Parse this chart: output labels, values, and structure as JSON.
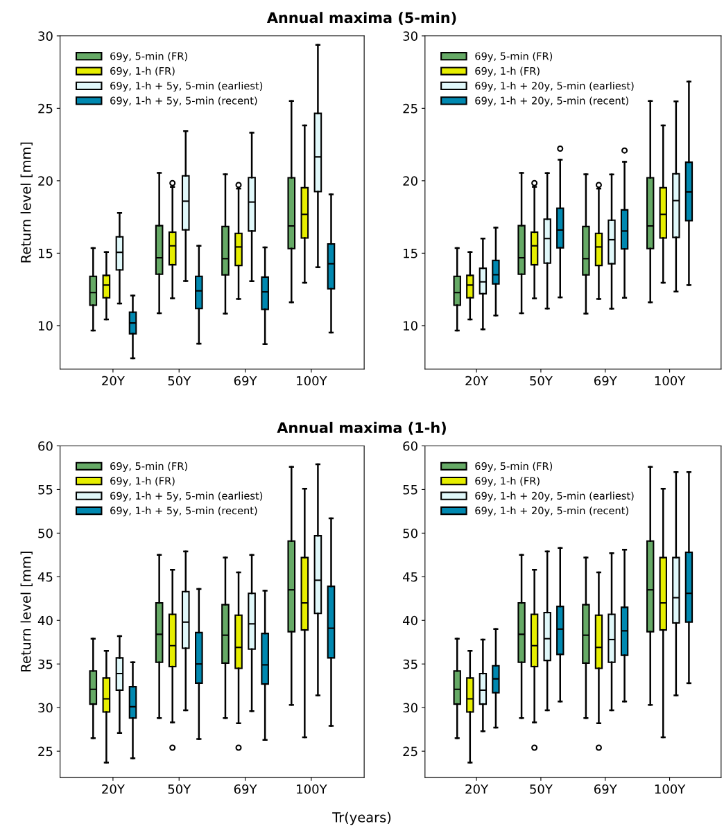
{
  "chart_data": [
    {
      "type": "box",
      "title": "Annual maxima (5-min)",
      "ylabel": "Return level [mm]",
      "categories": [
        "20Y",
        "50Y",
        "69Y",
        "100Y"
      ],
      "ylim": [
        7,
        30
      ],
      "yticks": [
        10,
        15,
        20,
        25,
        30
      ],
      "legend": "top left",
      "series": [
        {
          "name": "69y, 5-min (FR)",
          "color": "#66aa66",
          "boxes": [
            {
              "low": 9.66,
              "q1": 11.41,
              "median": 12.28,
              "q3": 13.4,
              "high": 15.35
            },
            {
              "low": 10.86,
              "q1": 13.55,
              "median": 14.68,
              "q3": 16.9,
              "high": 20.54
            },
            {
              "low": 10.83,
              "q1": 13.5,
              "median": 14.62,
              "q3": 16.84,
              "high": 20.45
            },
            {
              "low": 11.61,
              "q1": 15.32,
              "median": 16.88,
              "q3": 20.21,
              "high": 25.51
            }
          ]
        },
        {
          "name": "69y, 1-h (FR)",
          "color": "#e6ee00",
          "boxes": [
            {
              "low": 10.43,
              "q1": 11.92,
              "median": 12.8,
              "q3": 13.47,
              "high": 15.08
            },
            {
              "low": 11.88,
              "q1": 14.2,
              "median": 15.51,
              "q3": 16.45,
              "high": 19.58,
              "outliers": [
                19.84
              ]
            },
            {
              "low": 11.84,
              "q1": 14.15,
              "median": 15.43,
              "q3": 16.37,
              "high": 19.46,
              "outliers": [
                19.71
              ]
            },
            {
              "low": 12.96,
              "q1": 16.05,
              "median": 17.68,
              "q3": 19.52,
              "high": 23.82
            }
          ]
        },
        {
          "name": "69y, 1-h + 5y, 5-min (earliest)",
          "color": "#e0f8fa",
          "boxes": [
            {
              "low": 11.53,
              "q1": 13.85,
              "median": 15.06,
              "q3": 16.13,
              "high": 17.78
            },
            {
              "low": 13.08,
              "q1": 16.61,
              "median": 18.59,
              "q3": 20.34,
              "high": 23.43
            },
            {
              "low": 13.07,
              "q1": 16.53,
              "median": 18.53,
              "q3": 20.22,
              "high": 23.32
            },
            {
              "low": 14.03,
              "q1": 19.25,
              "median": 21.65,
              "q3": 24.65,
              "high": 29.38
            }
          ]
        },
        {
          "name": "69y, 1-h + 5y, 5-min (recent)",
          "color": "#0088b0",
          "boxes": [
            {
              "low": 7.75,
              "q1": 9.44,
              "median": 10.18,
              "q3": 10.93,
              "high": 12.08
            },
            {
              "low": 8.75,
              "q1": 11.18,
              "median": 12.4,
              "q3": 13.4,
              "high": 15.51
            },
            {
              "low": 8.72,
              "q1": 11.12,
              "median": 12.33,
              "q3": 13.35,
              "high": 15.4
            },
            {
              "low": 9.52,
              "q1": 12.54,
              "median": 14.27,
              "q3": 15.64,
              "high": 19.06
            }
          ]
        }
      ]
    },
    {
      "type": "box",
      "categories": [
        "20Y",
        "50Y",
        "69Y",
        "100Y"
      ],
      "ylim": [
        7,
        30
      ],
      "yticks": [
        10,
        15,
        20,
        25,
        30
      ],
      "legend": "top left",
      "series": [
        {
          "name": "69y, 5-min (FR)",
          "color": "#66aa66",
          "boxes": [
            {
              "low": 9.66,
              "q1": 11.41,
              "median": 12.28,
              "q3": 13.4,
              "high": 15.35
            },
            {
              "low": 10.86,
              "q1": 13.55,
              "median": 14.68,
              "q3": 16.9,
              "high": 20.54
            },
            {
              "low": 10.83,
              "q1": 13.5,
              "median": 14.62,
              "q3": 16.84,
              "high": 20.45
            },
            {
              "low": 11.61,
              "q1": 15.32,
              "median": 16.88,
              "q3": 20.21,
              "high": 25.51
            }
          ]
        },
        {
          "name": "69y, 1-h (FR)",
          "color": "#e6ee00",
          "boxes": [
            {
              "low": 10.43,
              "q1": 11.92,
              "median": 12.8,
              "q3": 13.47,
              "high": 15.08
            },
            {
              "low": 11.88,
              "q1": 14.2,
              "median": 15.51,
              "q3": 16.45,
              "high": 19.58,
              "outliers": [
                19.84
              ]
            },
            {
              "low": 11.84,
              "q1": 14.15,
              "median": 15.43,
              "q3": 16.37,
              "high": 19.46,
              "outliers": [
                19.71
              ]
            },
            {
              "low": 12.96,
              "q1": 16.05,
              "median": 17.68,
              "q3": 19.52,
              "high": 23.82
            }
          ]
        },
        {
          "name": "69y, 1-h + 20y, 5-min (earliest)",
          "color": "#e0f8fa",
          "boxes": [
            {
              "low": 9.74,
              "q1": 12.2,
              "median": 13.02,
              "q3": 13.96,
              "high": 16.01
            },
            {
              "low": 11.18,
              "q1": 14.31,
              "median": 16.01,
              "q3": 17.35,
              "high": 20.53
            },
            {
              "low": 11.17,
              "q1": 14.27,
              "median": 15.93,
              "q3": 17.28,
              "high": 20.43
            },
            {
              "low": 12.35,
              "q1": 16.09,
              "median": 18.63,
              "q3": 20.48,
              "high": 25.48
            }
          ]
        },
        {
          "name": "69y, 1-h + 20y, 5-min (recent)",
          "color": "#0088b0",
          "boxes": [
            {
              "low": 10.7,
              "q1": 12.88,
              "median": 13.51,
              "q3": 14.5,
              "high": 16.76
            },
            {
              "low": 11.95,
              "q1": 15.37,
              "median": 16.6,
              "q3": 18.1,
              "high": 21.45,
              "outliers": [
                22.22
              ]
            },
            {
              "low": 11.92,
              "q1": 15.29,
              "median": 16.53,
              "q3": 17.99,
              "high": 21.31,
              "outliers": [
                22.09
              ]
            },
            {
              "low": 12.8,
              "q1": 17.24,
              "median": 19.23,
              "q3": 21.28,
              "high": 26.85
            }
          ]
        }
      ]
    },
    {
      "type": "box",
      "title": "Annual maxima (1-h)",
      "ylabel": "Return level [mm]",
      "xlabel": "Tr(years)",
      "categories": [
        "20Y",
        "50Y",
        "69Y",
        "100Y"
      ],
      "ylim": [
        22,
        60
      ],
      "yticks": [
        25,
        30,
        35,
        40,
        45,
        50,
        55,
        60
      ],
      "legend": "top left",
      "series": [
        {
          "name": "69y, 5-min (FR)",
          "color": "#66aa66",
          "boxes": [
            {
              "low": 26.5,
              "q1": 30.4,
              "median": 32.1,
              "q3": 34.2,
              "high": 37.9
            },
            {
              "low": 28.8,
              "q1": 35.2,
              "median": 38.4,
              "q3": 42.0,
              "high": 47.5
            },
            {
              "low": 28.8,
              "q1": 35.1,
              "median": 38.3,
              "q3": 41.8,
              "high": 47.2
            },
            {
              "low": 30.3,
              "q1": 38.7,
              "median": 43.5,
              "q3": 49.1,
              "high": 57.6
            }
          ]
        },
        {
          "name": "69y, 1-h (FR)",
          "color": "#e6ee00",
          "boxes": [
            {
              "low": 23.7,
              "q1": 29.5,
              "median": 31.0,
              "q3": 33.4,
              "high": 36.5
            },
            {
              "low": 28.3,
              "q1": 34.7,
              "median": 37.1,
              "q3": 40.7,
              "high": 45.8,
              "outliers": [
                25.4
              ]
            },
            {
              "low": 28.2,
              "q1": 34.5,
              "median": 36.9,
              "q3": 40.6,
              "high": 45.5,
              "outliers": [
                25.4
              ]
            },
            {
              "low": 26.6,
              "q1": 38.9,
              "median": 42.0,
              "q3": 47.2,
              "high": 55.1
            }
          ]
        },
        {
          "name": "69y, 1-h + 5y, 5-min (earliest)",
          "color": "#e0f8fa",
          "boxes": [
            {
              "low": 27.1,
              "q1": 32.0,
              "median": 33.9,
              "q3": 35.7,
              "high": 38.2
            },
            {
              "low": 29.7,
              "q1": 36.8,
              "median": 39.8,
              "q3": 43.3,
              "high": 47.9
            },
            {
              "low": 29.6,
              "q1": 36.7,
              "median": 39.6,
              "q3": 43.1,
              "high": 47.5
            },
            {
              "low": 31.4,
              "q1": 40.8,
              "median": 44.6,
              "q3": 49.7,
              "high": 57.9
            }
          ]
        },
        {
          "name": "69y, 1-h + 5y, 5-min (recent)",
          "color": "#0088b0",
          "boxes": [
            {
              "low": 24.2,
              "q1": 28.8,
              "median": 30.1,
              "q3": 32.4,
              "high": 35.2
            },
            {
              "low": 26.4,
              "q1": 32.8,
              "median": 35.0,
              "q3": 38.6,
              "high": 43.6
            },
            {
              "low": 26.3,
              "q1": 32.7,
              "median": 34.9,
              "q3": 38.5,
              "high": 43.4
            },
            {
              "low": 27.9,
              "q1": 35.7,
              "median": 39.1,
              "q3": 43.9,
              "high": 51.7
            }
          ]
        }
      ]
    },
    {
      "type": "box",
      "categories": [
        "20Y",
        "50Y",
        "69Y",
        "100Y"
      ],
      "ylim": [
        22,
        60
      ],
      "yticks": [
        25,
        30,
        35,
        40,
        45,
        50,
        55,
        60
      ],
      "legend": "top left",
      "series": [
        {
          "name": "69y, 5-min (FR)",
          "color": "#66aa66",
          "boxes": [
            {
              "low": 26.5,
              "q1": 30.4,
              "median": 32.1,
              "q3": 34.2,
              "high": 37.9
            },
            {
              "low": 28.8,
              "q1": 35.2,
              "median": 38.4,
              "q3": 42.0,
              "high": 47.5
            },
            {
              "low": 28.8,
              "q1": 35.1,
              "median": 38.3,
              "q3": 41.8,
              "high": 47.2
            },
            {
              "low": 30.3,
              "q1": 38.7,
              "median": 43.5,
              "q3": 49.1,
              "high": 57.6
            }
          ]
        },
        {
          "name": "69y, 1-h (FR)",
          "color": "#e6ee00",
          "boxes": [
            {
              "low": 23.7,
              "q1": 29.5,
              "median": 31.0,
              "q3": 33.4,
              "high": 36.5
            },
            {
              "low": 28.3,
              "q1": 34.7,
              "median": 37.1,
              "q3": 40.7,
              "high": 45.8,
              "outliers": [
                25.4
              ]
            },
            {
              "low": 28.2,
              "q1": 34.5,
              "median": 36.9,
              "q3": 40.6,
              "high": 45.5,
              "outliers": [
                25.4
              ]
            },
            {
              "low": 26.6,
              "q1": 38.9,
              "median": 42.0,
              "q3": 47.2,
              "high": 55.1
            }
          ]
        },
        {
          "name": "69y, 1-h + 20y, 5-min (earliest)",
          "color": "#e0f8fa",
          "boxes": [
            {
              "low": 27.3,
              "q1": 30.4,
              "median": 32.0,
              "q3": 33.9,
              "high": 37.8
            },
            {
              "low": 29.7,
              "q1": 35.4,
              "median": 37.9,
              "q3": 40.9,
              "high": 47.9
            },
            {
              "low": 29.7,
              "q1": 35.2,
              "median": 37.8,
              "q3": 40.7,
              "high": 47.7
            },
            {
              "low": 31.4,
              "q1": 39.7,
              "median": 42.6,
              "q3": 47.2,
              "high": 57.0
            }
          ]
        },
        {
          "name": "69y, 1-h + 20y, 5-min (recent)",
          "color": "#0088b0",
          "boxes": [
            {
              "low": 27.7,
              "q1": 31.7,
              "median": 33.3,
              "q3": 34.8,
              "high": 39.0
            },
            {
              "low": 30.7,
              "q1": 36.1,
              "median": 39.0,
              "q3": 41.6,
              "high": 48.3
            },
            {
              "low": 30.7,
              "q1": 36.0,
              "median": 38.8,
              "q3": 41.5,
              "high": 48.1
            },
            {
              "low": 32.8,
              "q1": 39.8,
              "median": 43.1,
              "q3": 47.8,
              "high": 57.0
            }
          ]
        }
      ]
    }
  ]
}
